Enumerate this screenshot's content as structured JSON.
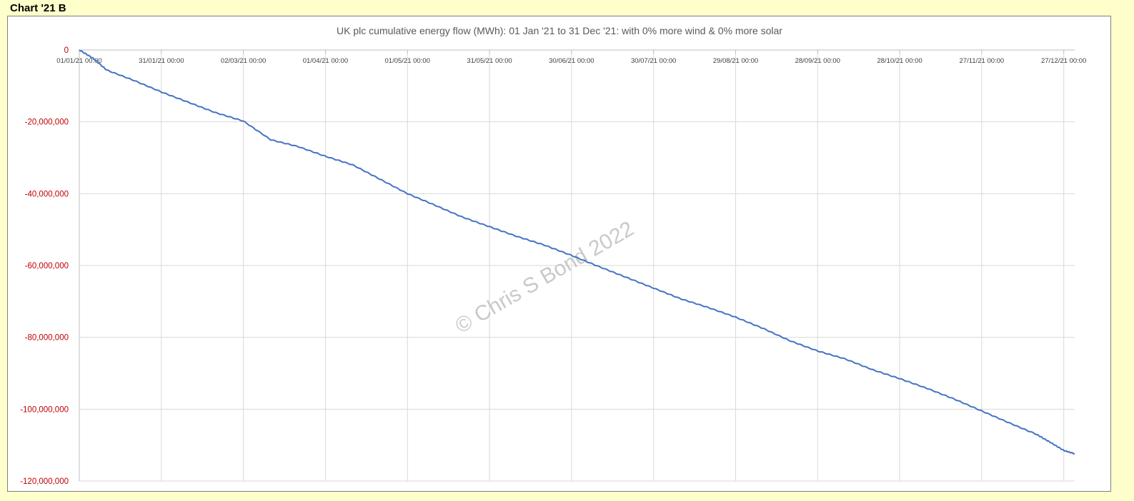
{
  "sheet_label": "Chart '21 B",
  "watermark": "© Chris S Bond  2022",
  "colors": {
    "series": "#4472c4",
    "ytick": "#c00000",
    "grid": "#d9d9d9",
    "background": "#ffffcc"
  },
  "chart_data": {
    "type": "line",
    "title": "UK plc cumulative energy flow (MWh): 01 Jan '21 to 31 Dec '21: with 0% more wind & 0% more solar",
    "xlabel": "",
    "ylabel": "",
    "grid": true,
    "legend": "none",
    "ylim": [
      -120000000,
      0
    ],
    "yticks": [
      0,
      -20000000,
      -40000000,
      -60000000,
      -80000000,
      -100000000,
      -120000000
    ],
    "ytick_labels": [
      "0",
      "-20,000,000",
      "-40,000,000",
      "-60,000,000",
      "-80,000,000",
      "-100,000,000",
      "-120,000,000"
    ],
    "xlim": [
      "2021-01-01",
      "2021-12-31"
    ],
    "xticks": [
      "2021-01-01",
      "2021-01-31",
      "2021-03-02",
      "2021-04-01",
      "2021-05-01",
      "2021-05-31",
      "2021-06-30",
      "2021-07-30",
      "2021-08-29",
      "2021-09-28",
      "2021-10-28",
      "2021-11-27",
      "2021-12-27"
    ],
    "xtick_labels": [
      "01/01/21 00:00",
      "31/01/21 00:00",
      "02/03/21 00:00",
      "01/04/21 00:00",
      "01/05/21 00:00",
      "31/05/21 00:00",
      "30/06/21 00:00",
      "30/07/21 00:00",
      "29/08/21 00:00",
      "28/09/21 00:00",
      "28/10/21 00:00",
      "27/11/21 00:00",
      "27/12/21 00:00"
    ],
    "series": [
      {
        "x": [
          "2021-01-01",
          "2021-01-06",
          "2021-01-11",
          "2021-01-21",
          "2021-01-31",
          "2021-02-10",
          "2021-02-20",
          "2021-03-02",
          "2021-03-12",
          "2021-03-22",
          "2021-04-01",
          "2021-04-11",
          "2021-04-21",
          "2021-05-01",
          "2021-05-11",
          "2021-05-21",
          "2021-05-31",
          "2021-06-10",
          "2021-06-20",
          "2021-06-30",
          "2021-07-10",
          "2021-07-20",
          "2021-07-30",
          "2021-08-09",
          "2021-08-19",
          "2021-08-29",
          "2021-09-08",
          "2021-09-18",
          "2021-09-28",
          "2021-10-08",
          "2021-10-18",
          "2021-10-28",
          "2021-11-07",
          "2021-11-17",
          "2021-11-27",
          "2021-12-07",
          "2021-12-17",
          "2021-12-22",
          "2021-12-27",
          "2021-12-31"
        ],
        "values": [
          0,
          -2300000,
          -5600000,
          -8500000,
          -11700000,
          -14600000,
          -17500000,
          -19800000,
          -25000000,
          -26900000,
          -29600000,
          -32000000,
          -36000000,
          -40000000,
          -43200000,
          -46500000,
          -49200000,
          -51900000,
          -54300000,
          -57200000,
          -60300000,
          -63300000,
          -66300000,
          -69300000,
          -71700000,
          -74400000,
          -77500000,
          -81000000,
          -83800000,
          -86000000,
          -89000000,
          -91500000,
          -94200000,
          -97200000,
          -100500000,
          -103800000,
          -107000000,
          -109200000,
          -111500000,
          -112400000
        ]
      }
    ]
  }
}
